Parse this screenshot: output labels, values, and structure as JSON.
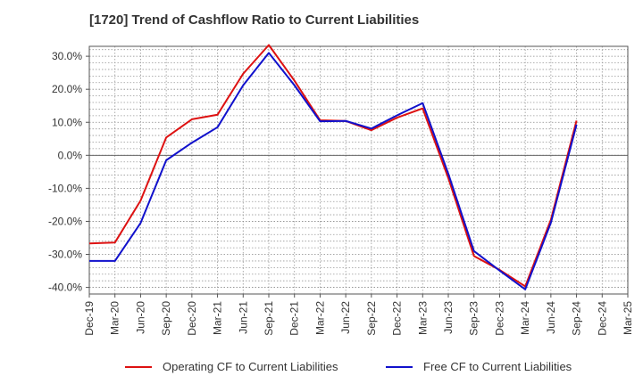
{
  "chart_data": {
    "type": "line",
    "title": "[1720]  Trend of Cashflow Ratio to Current Liabilities",
    "xlabel": "",
    "ylabel": "",
    "ylim": [
      -42,
      33
    ],
    "yticks": [
      30,
      20,
      10,
      0,
      -10,
      -20,
      -30,
      -40
    ],
    "ytick_labels": [
      "30.0%",
      "20.0%",
      "10.0%",
      "0.0%",
      "-10.0%",
      "-20.0%",
      "-30.0%",
      "-40.0%"
    ],
    "xticks": [
      "Dec-19",
      "Mar-20",
      "Jun-20",
      "Sep-20",
      "Dec-20",
      "Mar-21",
      "Jun-21",
      "Sep-21",
      "Dec-21",
      "Mar-22",
      "Jun-22",
      "Sep-22",
      "Dec-22",
      "Mar-23",
      "Jun-23",
      "Sep-23",
      "Dec-23",
      "Mar-24",
      "Jun-24",
      "Sep-24",
      "Dec-24",
      "Mar-25"
    ],
    "grid": true,
    "legend_position": "bottom",
    "series": [
      {
        "name": "Operating CF to Current Liabilities",
        "color": "#dd1111",
        "x": [
          "Dec-19",
          "Mar-20",
          "Jun-20",
          "Sep-20",
          "Dec-20",
          "Mar-21",
          "Jun-21",
          "Sep-21",
          "Dec-21",
          "Mar-22",
          "Jun-22",
          "Sep-22",
          "Dec-22",
          "Mar-23",
          "Jun-23",
          "Sep-23",
          "Dec-23",
          "Mar-24",
          "Jun-24",
          "Sep-24"
        ],
        "values": [
          -26.7,
          -26.4,
          -13.7,
          5.4,
          10.9,
          12.3,
          24.7,
          33.4,
          22.6,
          10.6,
          10.4,
          7.6,
          11.4,
          14.2,
          -6.9,
          -30.5,
          -34.7,
          -39.7,
          -19.5,
          10.5
        ]
      },
      {
        "name": "Free CF to Current Liabilities",
        "color": "#1111cc",
        "x": [
          "Dec-19",
          "Mar-20",
          "Jun-20",
          "Sep-20",
          "Dec-20",
          "Mar-21",
          "Jun-21",
          "Sep-21",
          "Dec-21",
          "Mar-22",
          "Jun-22",
          "Sep-22",
          "Dec-22",
          "Mar-23",
          "Jun-23",
          "Sep-23",
          "Dec-23",
          "Mar-24",
          "Jun-24",
          "Sep-24"
        ],
        "values": [
          -32.0,
          -32.0,
          -20.5,
          -1.5,
          3.8,
          8.5,
          21.2,
          31.0,
          21.2,
          10.3,
          10.4,
          8.1,
          12.1,
          15.8,
          -5.6,
          -29.0,
          -34.9,
          -40.6,
          -20.4,
          9.3
        ]
      }
    ]
  }
}
